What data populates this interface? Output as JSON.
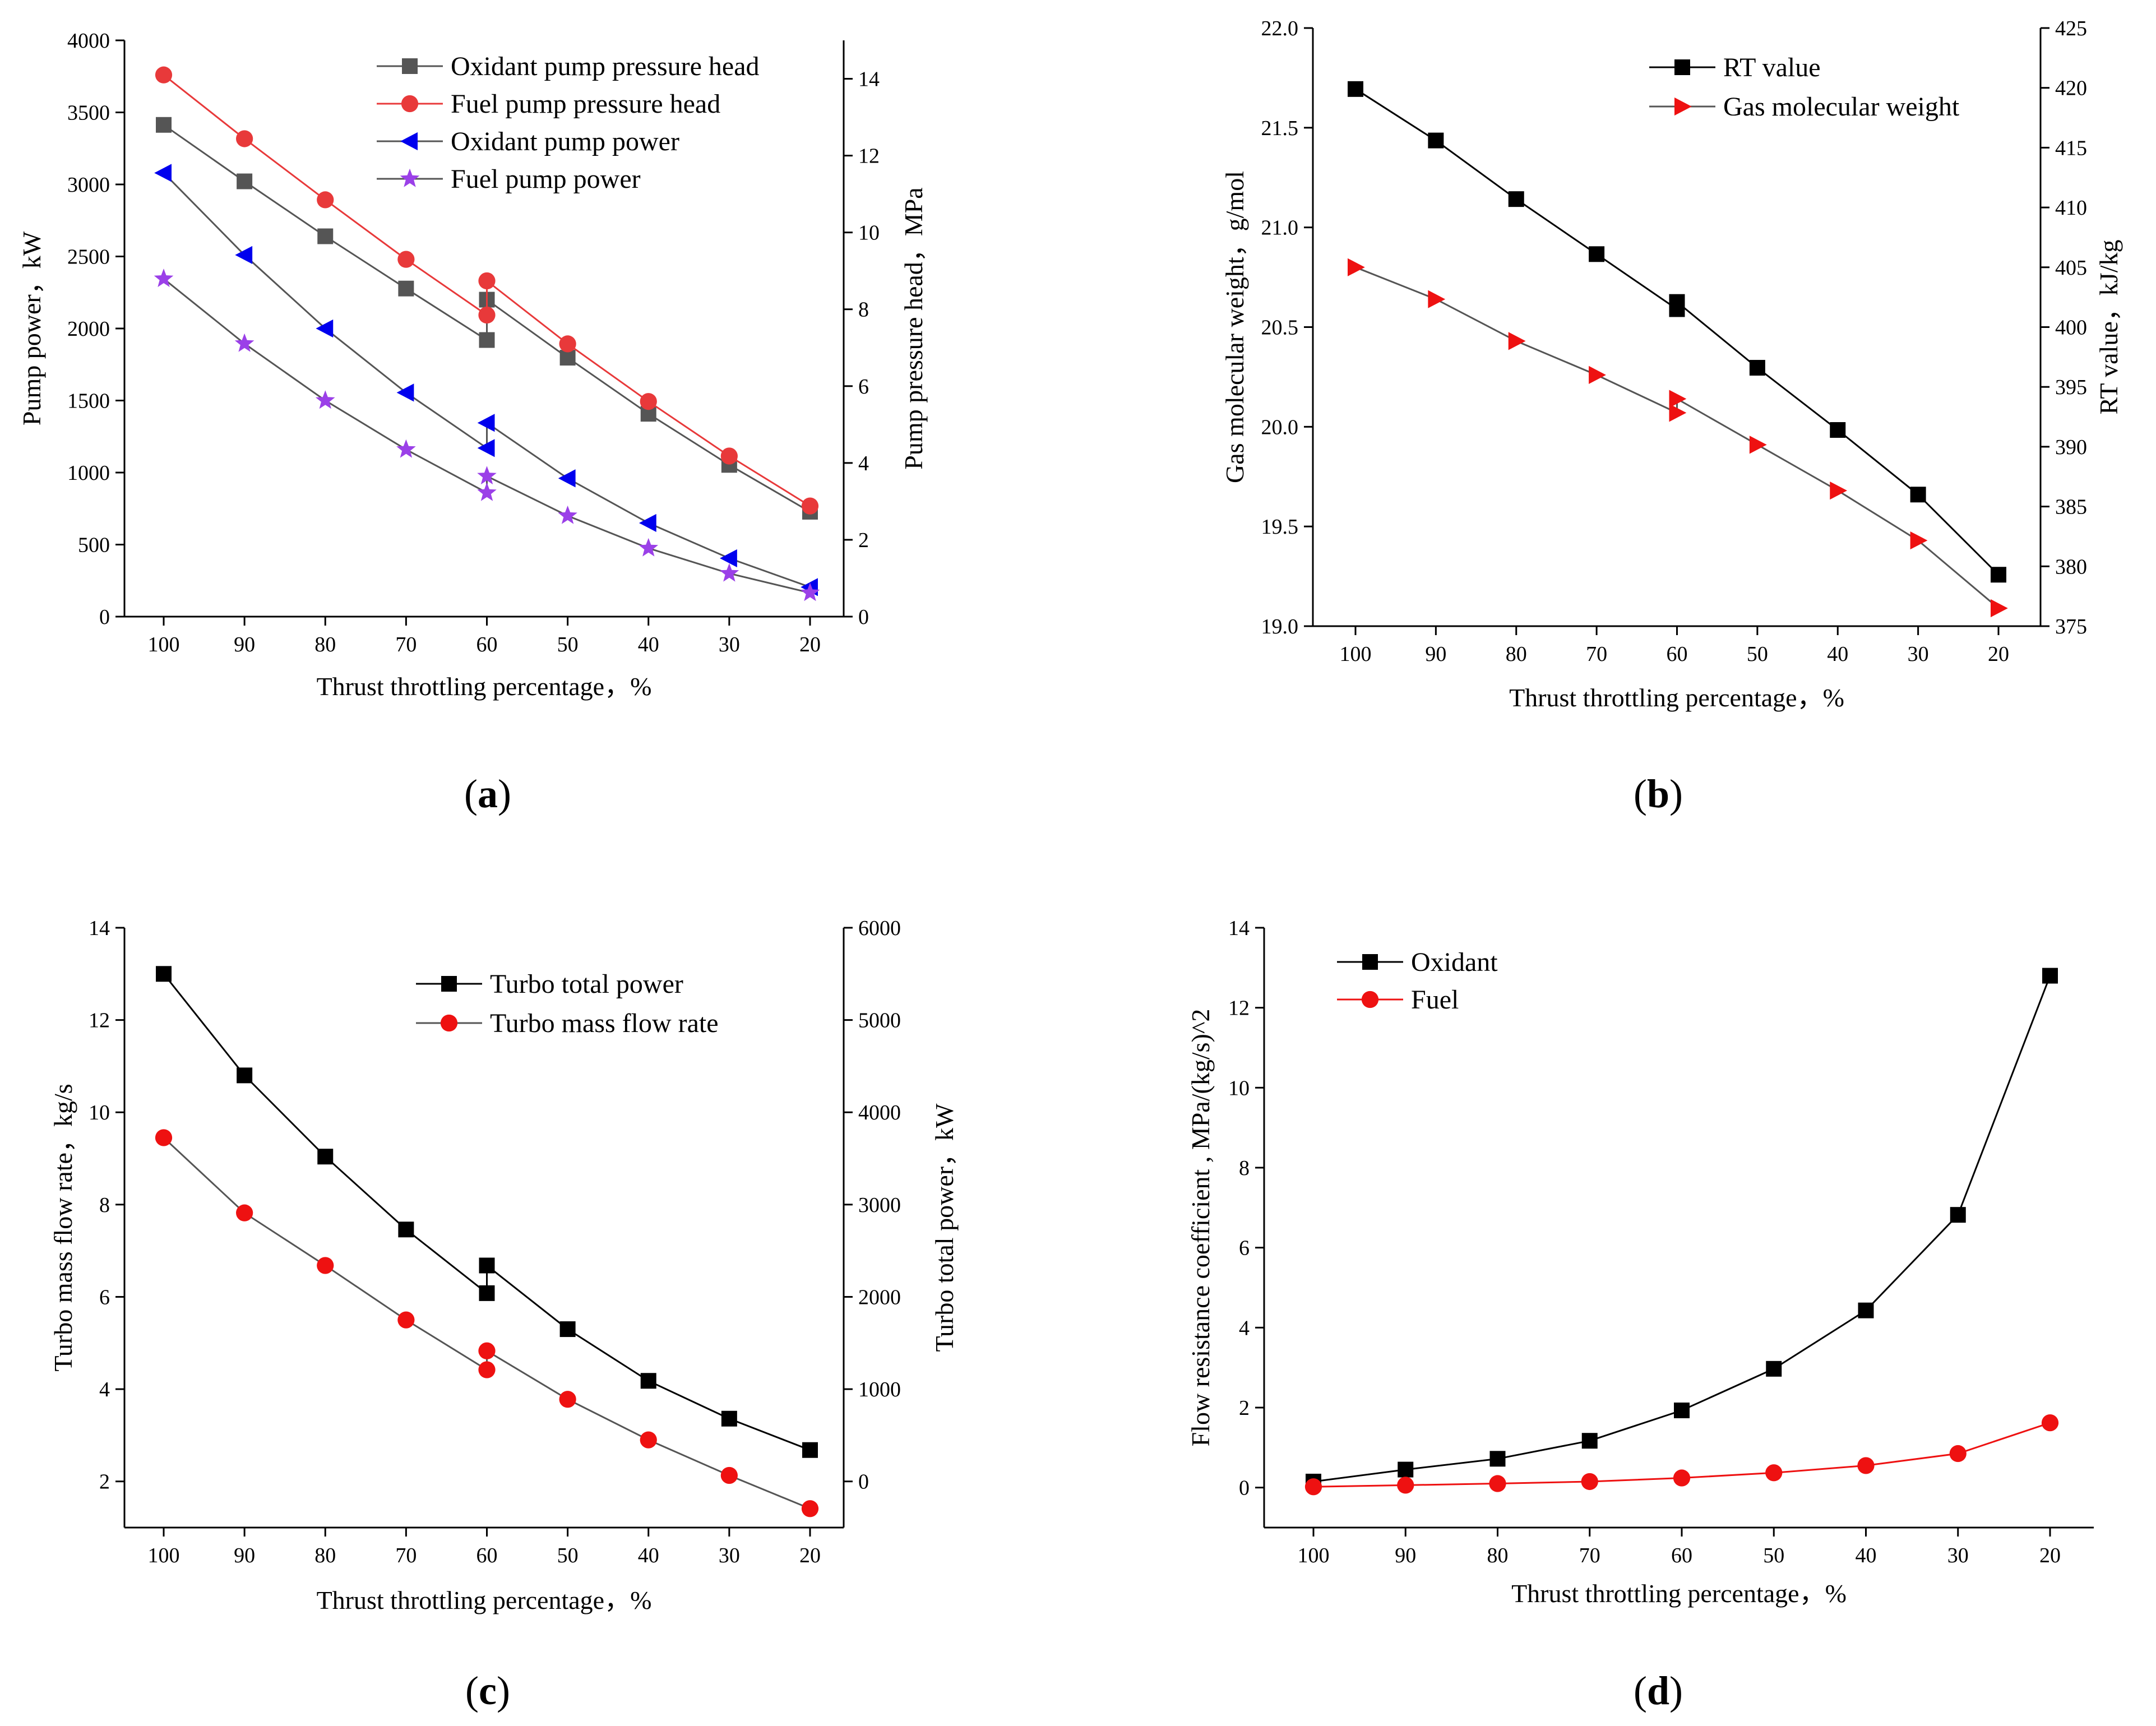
{
  "chart_data": [
    {
      "id": "a",
      "type": "line",
      "caption": "a",
      "categories": [
        "100",
        "90",
        "80",
        "70",
        "60",
        "50",
        "40",
        "30",
        "20"
      ],
      "xlabel": "Thrust throttling percentage，%",
      "ylabel": "Pump power，kW",
      "ylabel_right": "Pump pressure head，MPa",
      "ylim": [
        0,
        4000
      ],
      "yticks": [
        0,
        500,
        1000,
        1500,
        2000,
        2500,
        3000,
        3500,
        4000
      ],
      "ylim_right": [
        0,
        15
      ],
      "yticks_right": [
        0,
        2,
        4,
        6,
        8,
        10,
        12,
        14
      ],
      "legend_position": "top-right",
      "series": [
        {
          "name": "Oxidant pump pressure head",
          "axis": "right",
          "color": "#555555",
          "line_color": "#555555",
          "marker": "square",
          "x": [
            100,
            90,
            80,
            70,
            60,
            60,
            50,
            40,
            30,
            20
          ],
          "y": [
            12.8,
            11.33,
            9.9,
            8.54,
            7.2,
            8.25,
            6.74,
            5.28,
            3.95,
            2.73
          ]
        },
        {
          "name": "Fuel pump pressure head",
          "axis": "right",
          "color": "#e8393a",
          "line_color": "#e8393a",
          "marker": "circle",
          "x": [
            100,
            90,
            80,
            70,
            60,
            60,
            50,
            40,
            30,
            20
          ],
          "y": [
            14.1,
            12.44,
            10.85,
            9.3,
            7.85,
            8.74,
            7.1,
            5.6,
            4.18,
            2.88
          ]
        },
        {
          "name": "Oxidant pump power",
          "axis": "left",
          "color": "#0000ee",
          "line_color": "#555555",
          "marker": "triangle-left",
          "x": [
            100,
            90,
            80,
            70,
            60,
            60,
            50,
            40,
            30,
            20
          ],
          "y": [
            3080,
            2510,
            2000,
            1555,
            1170,
            1345,
            960,
            650,
            405,
            205
          ]
        },
        {
          "name": "Fuel pump power",
          "axis": "left",
          "color": "#9b40e8",
          "line_color": "#555555",
          "marker": "star",
          "x": [
            100,
            90,
            80,
            70,
            60,
            60,
            50,
            40,
            30,
            20
          ],
          "y": [
            2345,
            1895,
            1500,
            1160,
            860,
            975,
            700,
            475,
            300,
            165
          ]
        }
      ]
    },
    {
      "id": "b",
      "type": "line",
      "caption": "b",
      "categories": [
        "100",
        "90",
        "80",
        "70",
        "60",
        "50",
        "40",
        "30",
        "20"
      ],
      "xlabel": "Thrust throttling percentage，%",
      "ylabel": "Gas molecular weight，g/mol",
      "ylabel_right": "RT value，kJ/kg",
      "ylim": [
        19.0,
        22.0
      ],
      "yticks": [
        "19.0",
        "19.5",
        "20.0",
        "20.5",
        "21.0",
        "21.5",
        "22.0"
      ],
      "ylim_right": [
        375,
        425
      ],
      "yticks_right": [
        375,
        380,
        385,
        390,
        395,
        400,
        405,
        410,
        415,
        420,
        425
      ],
      "legend_position": "top-right",
      "series": [
        {
          "name": "RT value",
          "axis": "right",
          "color": "#000000",
          "line_color": "#000000",
          "marker": "square",
          "x": [
            100,
            90,
            80,
            70,
            60,
            60,
            50,
            40,
            30,
            20
          ],
          "y": [
            419.9,
            415.6,
            410.7,
            406.1,
            401.5,
            402.1,
            396.6,
            391.4,
            386.0,
            379.3
          ]
        },
        {
          "name": "Gas molecular weight",
          "axis": "left",
          "color": "#ee1111",
          "line_color": "#555555",
          "marker": "triangle-right",
          "x": [
            100,
            90,
            80,
            70,
            60,
            60,
            50,
            40,
            30,
            20
          ],
          "y": [
            20.8,
            20.64,
            20.43,
            20.26,
            20.07,
            20.14,
            19.91,
            19.68,
            19.43,
            19.09
          ]
        }
      ]
    },
    {
      "id": "c",
      "type": "line",
      "caption": "c",
      "categories": [
        "100",
        "90",
        "80",
        "70",
        "60",
        "50",
        "40",
        "30",
        "20"
      ],
      "xlabel": "Thrust throttling percentage，%",
      "ylabel": "Turbo mass flow rate，kg/s",
      "ylabel_right": "Turbo total power，kW",
      "ylim": [
        1,
        14
      ],
      "yticks": [
        2,
        4,
        6,
        8,
        10,
        12,
        14
      ],
      "ylim_right": [
        -500,
        6000
      ],
      "yticks_right": [
        0,
        1000,
        2000,
        3000,
        4000,
        5000,
        6000
      ],
      "legend_position": "top-right",
      "series": [
        {
          "name": "Turbo total power",
          "axis": "right",
          "color": "#000000",
          "line_color": "#000000",
          "marker": "square",
          "x": [
            100,
            90,
            80,
            70,
            60,
            60,
            50,
            40,
            30,
            20
          ],
          "y": [
            5500,
            4400,
            3520,
            2730,
            2040,
            2340,
            1650,
            1090,
            680,
            340
          ]
        },
        {
          "name": "Turbo mass flow rate",
          "axis": "left",
          "color": "#ee1111",
          "line_color": "#555555",
          "marker": "circle",
          "x": [
            100,
            90,
            80,
            70,
            60,
            60,
            50,
            40,
            30,
            20
          ],
          "y": [
            9.45,
            7.82,
            6.68,
            5.5,
            4.42,
            4.83,
            3.78,
            2.9,
            2.13,
            1.41
          ]
        }
      ]
    },
    {
      "id": "d",
      "type": "line",
      "caption": "d",
      "categories": [
        "100",
        "90",
        "80",
        "70",
        "60",
        "50",
        "40",
        "30",
        "20"
      ],
      "xlabel": "Thrust throttling percentage，%",
      "ylabel": "Flow resistance coefficient , MPa/(kg/s)^2",
      "ylim": [
        -1,
        14
      ],
      "yticks": [
        0,
        2,
        4,
        6,
        8,
        10,
        12,
        14
      ],
      "legend_position": "top-left",
      "series": [
        {
          "name": "Oxidant",
          "axis": "left",
          "color": "#000000",
          "line_color": "#000000",
          "marker": "square",
          "x": [
            100,
            90,
            80,
            70,
            60,
            50,
            40,
            30,
            20
          ],
          "y": [
            0.15,
            0.45,
            0.72,
            1.17,
            1.93,
            2.97,
            4.43,
            6.82,
            12.8
          ]
        },
        {
          "name": "Fuel",
          "axis": "left",
          "color": "#ee1111",
          "line_color": "#ee1111",
          "marker": "circle",
          "x": [
            100,
            90,
            80,
            70,
            60,
            50,
            40,
            30,
            20
          ],
          "y": [
            0.02,
            0.06,
            0.1,
            0.15,
            0.24,
            0.37,
            0.55,
            0.85,
            1.62
          ]
        }
      ]
    }
  ]
}
